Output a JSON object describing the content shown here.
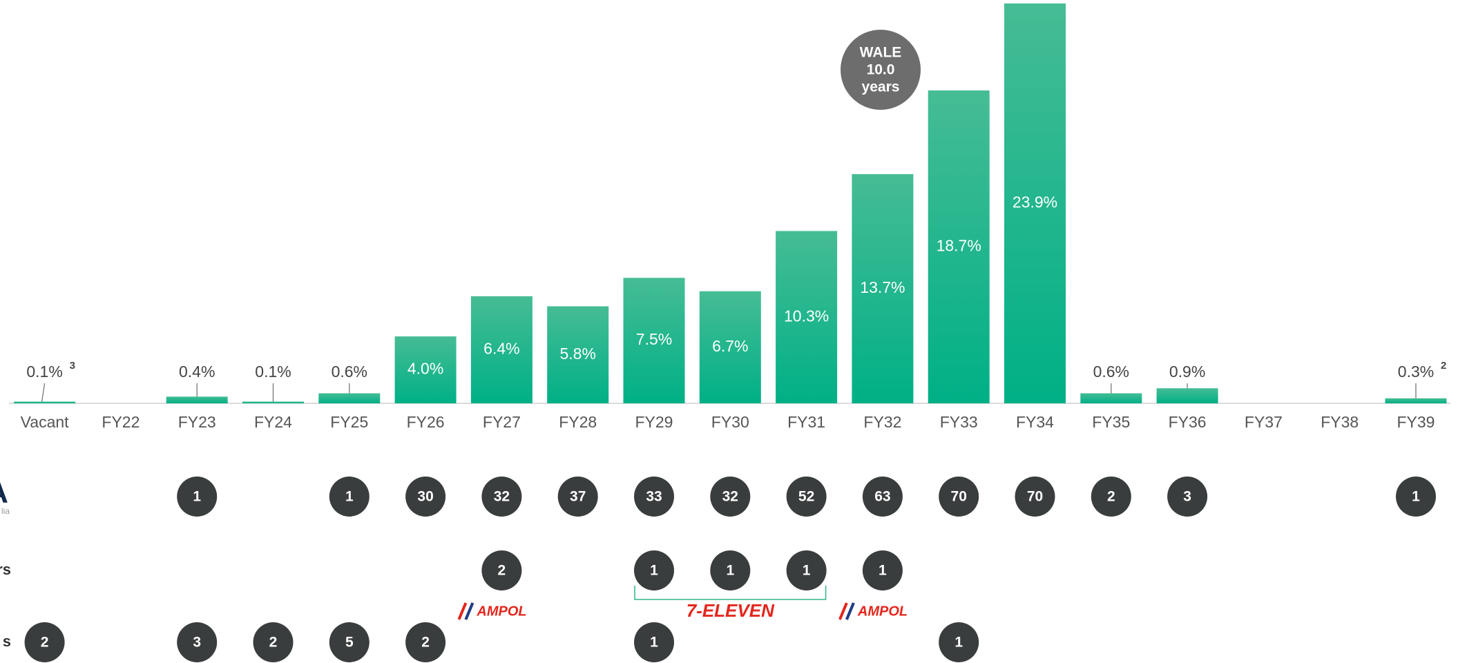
{
  "chart_data": {
    "type": "bar",
    "categories": [
      "Vacant",
      "FY22",
      "FY23",
      "FY24",
      "FY25",
      "FY26",
      "FY27",
      "FY28",
      "FY29",
      "FY30",
      "FY31",
      "FY32",
      "FY33",
      "FY34",
      "FY35",
      "FY36",
      "FY37",
      "FY38",
      "FY39"
    ],
    "values": [
      0.1,
      null,
      0.4,
      0.1,
      0.6,
      4.0,
      6.4,
      5.8,
      7.5,
      6.7,
      10.3,
      13.7,
      18.7,
      23.9,
      0.6,
      0.9,
      null,
      null,
      0.3
    ],
    "value_labels": [
      "0.1%",
      null,
      "0.4%",
      "0.1%",
      "0.6%",
      "4.0%",
      "6.4%",
      "5.8%",
      "7.5%",
      "6.7%",
      "10.3%",
      "13.7%",
      "18.7%",
      "23.9%",
      "0.6%",
      "0.9%",
      null,
      null,
      "0.3%"
    ],
    "value_footnotes": [
      "3",
      null,
      null,
      null,
      null,
      null,
      null,
      null,
      null,
      null,
      null,
      null,
      null,
      null,
      null,
      null,
      null,
      null,
      "2"
    ],
    "color": "#00b086",
    "annotation": {
      "lines": [
        "WALE",
        "10.0",
        "years"
      ]
    },
    "rows": [
      {
        "label": "A",
        "sublabel": "lia",
        "counts": [
          null,
          null,
          1,
          null,
          1,
          30,
          32,
          37,
          33,
          32,
          52,
          63,
          70,
          70,
          2,
          3,
          null,
          null,
          1
        ]
      },
      {
        "label": "rs",
        "counts": [
          null,
          null,
          null,
          null,
          null,
          null,
          2,
          null,
          1,
          1,
          1,
          1,
          null,
          null,
          null,
          null,
          null,
          null,
          null
        ]
      },
      {
        "label": "s",
        "counts": [
          2,
          null,
          3,
          2,
          5,
          2,
          null,
          null,
          1,
          null,
          null,
          null,
          1,
          null,
          null,
          null,
          null,
          null,
          null
        ]
      }
    ],
    "brands": [
      {
        "text": "AMPOL",
        "from": "FY27",
        "to": "FY27"
      },
      {
        "text": "7-ELEVEN",
        "from": "FY29",
        "to": "FY31"
      },
      {
        "text": "AMPOL",
        "from": "FY32",
        "to": "FY32"
      }
    ]
  }
}
